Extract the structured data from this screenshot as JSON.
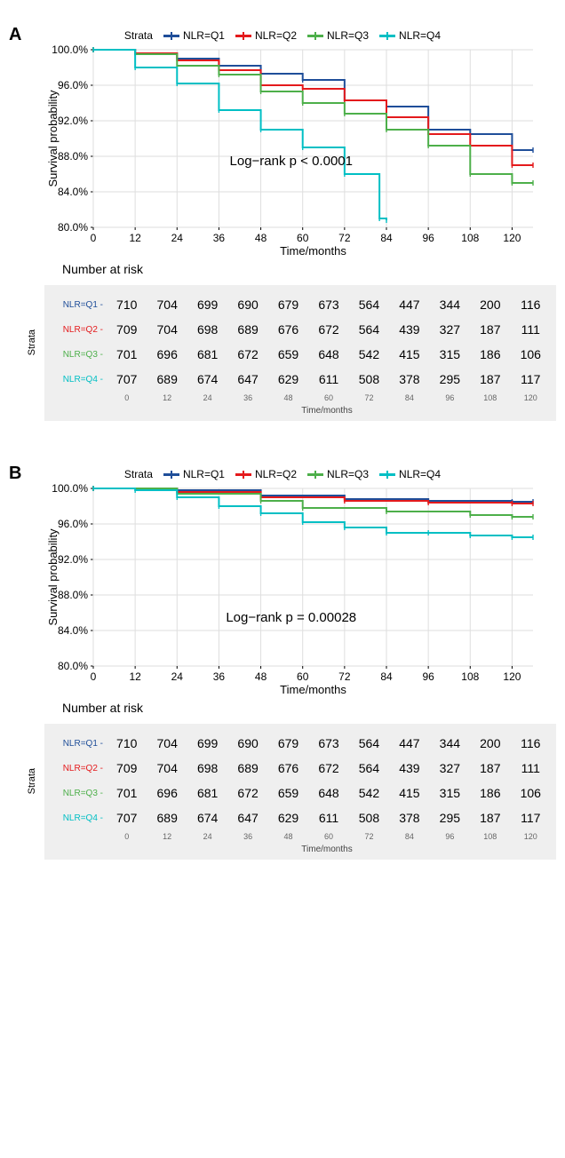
{
  "colors": {
    "Q1": "#1f4e99",
    "Q2": "#e41a1c",
    "Q3": "#4daf4a",
    "Q4": "#00bfc4",
    "grid": "#dedede",
    "risk_bg": "#efefef",
    "text": "#000000",
    "axis_text": "#666666"
  },
  "legend_title": "Strata",
  "legend_items": [
    {
      "key": "Q1",
      "label": "NLR=Q1"
    },
    {
      "key": "Q2",
      "label": "NLR=Q2"
    },
    {
      "key": "Q3",
      "label": "NLR=Q3"
    },
    {
      "key": "Q4",
      "label": "NLR=Q4"
    }
  ],
  "time_ticks": [
    0,
    12,
    24,
    36,
    48,
    60,
    72,
    84,
    96,
    108,
    120
  ],
  "x_label": "Time/months",
  "y_label": "Survival probability",
  "y_ticks_fmt": [
    "80.0%",
    "84.0%",
    "88.0%",
    "92.0%",
    "96.0%",
    "100.0%"
  ],
  "y_ticks_val": [
    80,
    84,
    88,
    92,
    96,
    100
  ],
  "panelA": {
    "label": "A",
    "annotation": "Log−rank     p < 0.0001",
    "ylim": [
      80,
      100
    ],
    "series": {
      "Q1": [
        [
          0,
          100
        ],
        [
          12,
          99.6
        ],
        [
          24,
          99.0
        ],
        [
          36,
          98.2
        ],
        [
          48,
          97.3
        ],
        [
          60,
          96.6
        ],
        [
          72,
          94.3
        ],
        [
          84,
          93.6
        ],
        [
          96,
          91.0
        ],
        [
          108,
          90.5
        ],
        [
          120,
          88.7
        ],
        [
          126,
          88.7
        ]
      ],
      "Q2": [
        [
          0,
          100
        ],
        [
          12,
          99.6
        ],
        [
          24,
          98.8
        ],
        [
          36,
          97.7
        ],
        [
          48,
          96.0
        ],
        [
          60,
          95.6
        ],
        [
          72,
          94.3
        ],
        [
          84,
          92.4
        ],
        [
          96,
          90.5
        ],
        [
          108,
          89.2
        ],
        [
          120,
          87.0
        ],
        [
          126,
          87.0
        ]
      ],
      "Q3": [
        [
          0,
          100
        ],
        [
          12,
          99.5
        ],
        [
          24,
          98.2
        ],
        [
          36,
          97.2
        ],
        [
          48,
          95.3
        ],
        [
          60,
          94.0
        ],
        [
          72,
          92.8
        ],
        [
          84,
          91.0
        ],
        [
          96,
          89.2
        ],
        [
          108,
          86.0
        ],
        [
          120,
          85.0
        ],
        [
          126,
          85.0
        ]
      ],
      "Q4": [
        [
          0,
          100
        ],
        [
          12,
          98.0
        ],
        [
          24,
          96.2
        ],
        [
          36,
          93.2
        ],
        [
          48,
          91.0
        ],
        [
          60,
          89.0
        ],
        [
          72,
          86.0
        ],
        [
          82,
          81.0
        ],
        [
          84,
          80.8
        ]
      ]
    }
  },
  "panelB": {
    "label": "B",
    "annotation": "Log−rank     p = 0.00028",
    "ylim": [
      80,
      100
    ],
    "series": {
      "Q1": [
        [
          0,
          100
        ],
        [
          24,
          99.8
        ],
        [
          48,
          99.2
        ],
        [
          72,
          98.8
        ],
        [
          96,
          98.6
        ],
        [
          120,
          98.5
        ],
        [
          126,
          98.5
        ]
      ],
      "Q2": [
        [
          0,
          100
        ],
        [
          24,
          99.6
        ],
        [
          48,
          99.0
        ],
        [
          72,
          98.6
        ],
        [
          96,
          98.4
        ],
        [
          120,
          98.3
        ],
        [
          126,
          98.3
        ]
      ],
      "Q3": [
        [
          0,
          100
        ],
        [
          24,
          99.4
        ],
        [
          48,
          98.6
        ],
        [
          60,
          97.8
        ],
        [
          84,
          97.4
        ],
        [
          108,
          97.0
        ],
        [
          120,
          96.8
        ],
        [
          126,
          96.8
        ]
      ],
      "Q4": [
        [
          0,
          100
        ],
        [
          12,
          99.8
        ],
        [
          24,
          99.0
        ],
        [
          36,
          98.0
        ],
        [
          48,
          97.2
        ],
        [
          60,
          96.2
        ],
        [
          72,
          95.6
        ],
        [
          84,
          95.0
        ],
        [
          96,
          95.0
        ],
        [
          108,
          94.7
        ],
        [
          120,
          94.5
        ],
        [
          126,
          94.5
        ]
      ]
    }
  },
  "risk_title": "Number at risk",
  "risk_strata_label": "Strata",
  "risk_rows": [
    {
      "key": "Q1",
      "label": "NLR=Q1 -",
      "values": [
        710,
        704,
        699,
        690,
        679,
        673,
        564,
        447,
        344,
        200,
        116
      ]
    },
    {
      "key": "Q2",
      "label": "NLR=Q2 -",
      "values": [
        709,
        704,
        698,
        689,
        676,
        672,
        564,
        439,
        327,
        187,
        111
      ]
    },
    {
      "key": "Q3",
      "label": "NLR=Q3 -",
      "values": [
        701,
        696,
        681,
        672,
        659,
        648,
        542,
        415,
        315,
        186,
        106
      ]
    },
    {
      "key": "Q4",
      "label": "NLR=Q4 -",
      "values": [
        707,
        689,
        674,
        647,
        629,
        611,
        508,
        378,
        295,
        187,
        117
      ]
    }
  ]
}
